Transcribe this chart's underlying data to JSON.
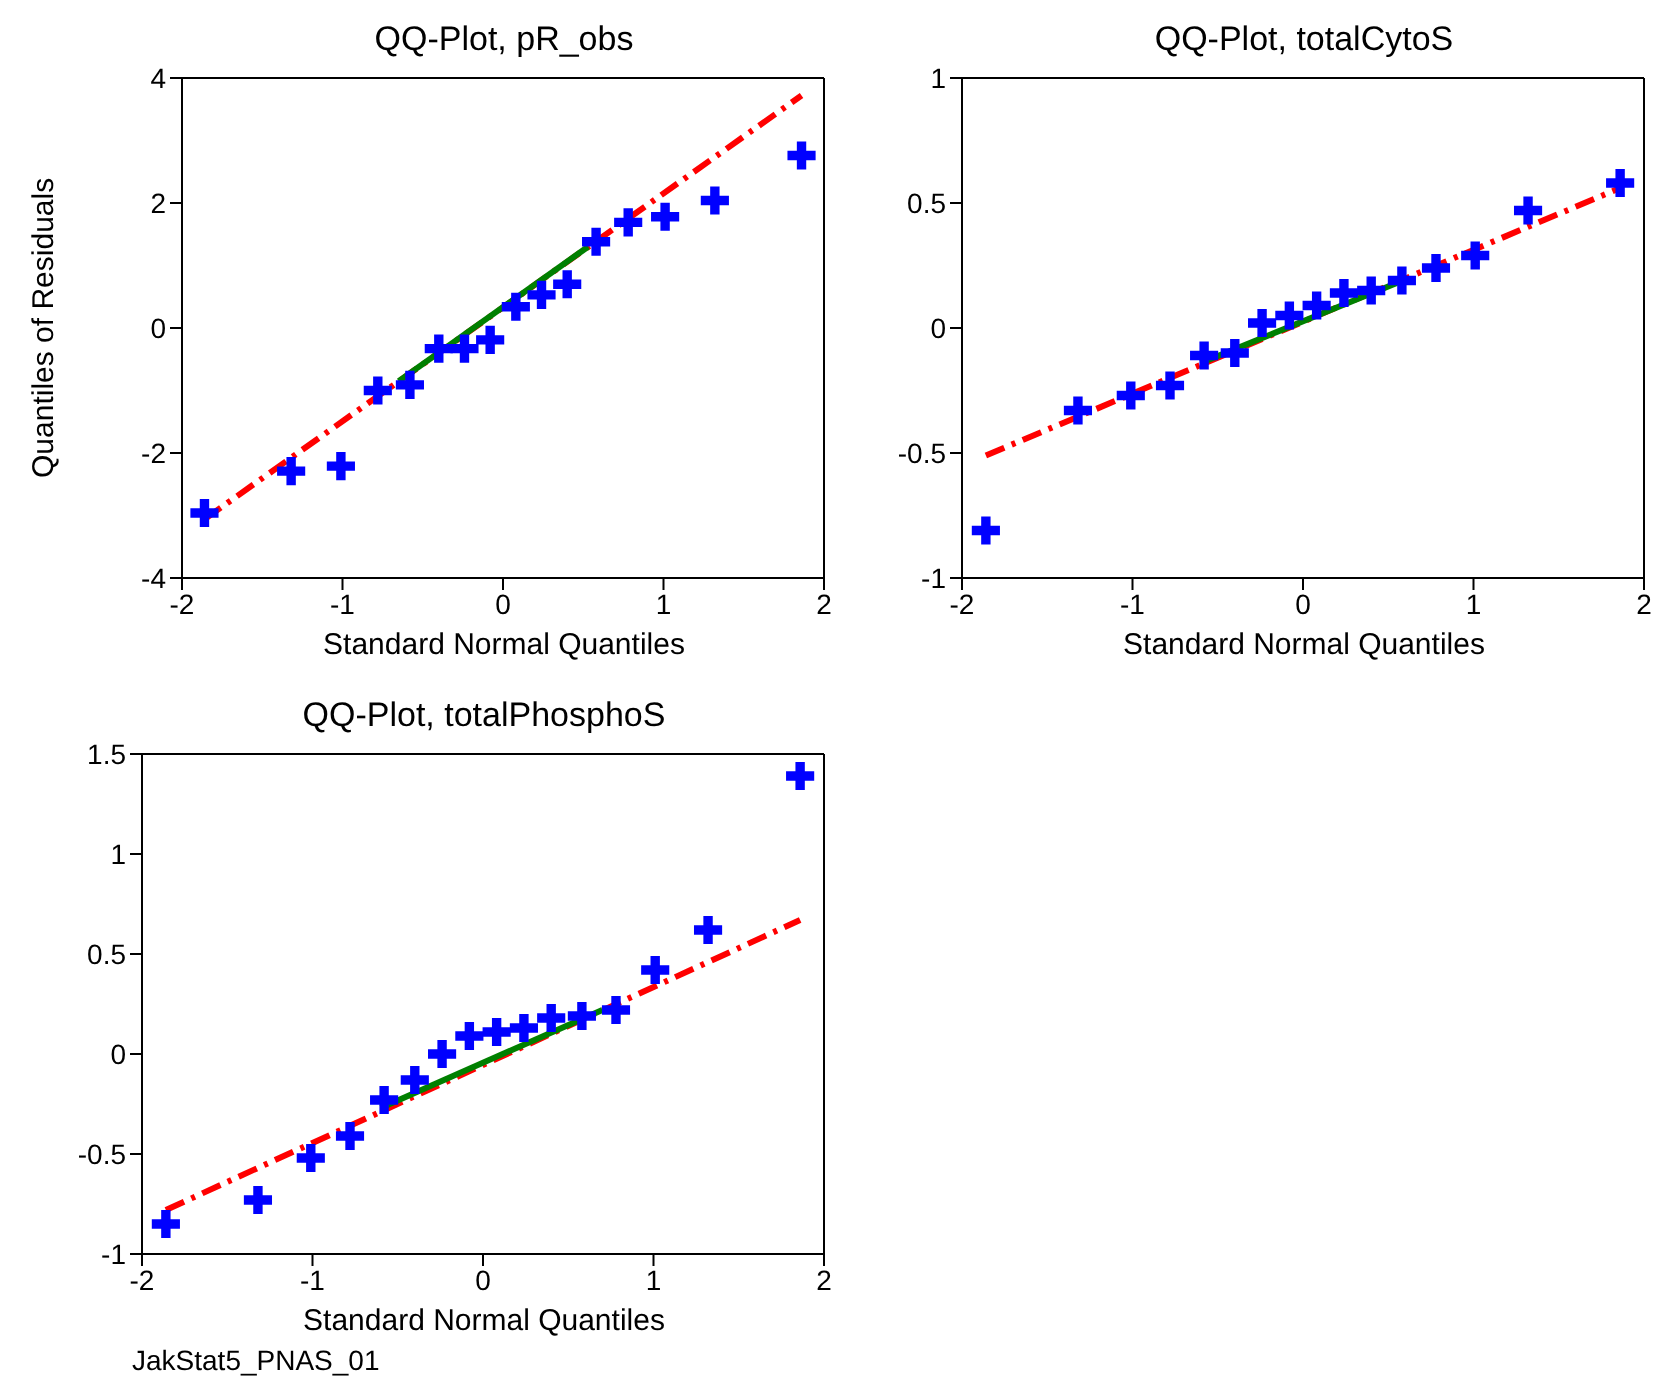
{
  "chart_data": [
    {
      "type": "scatter",
      "title": "QQ-Plot, pR_obs",
      "xlabel": "Standard Normal Quantiles",
      "ylabel": "Quantiles of Residuals",
      "xlim": [
        -2,
        2
      ],
      "xticks": [
        -2,
        -1,
        0,
        1,
        2
      ],
      "ylim": [
        -4,
        4
      ],
      "yticks": [
        -4,
        -2,
        0,
        2,
        4
      ],
      "series": [
        {
          "type": "line",
          "color": "#ff0000",
          "line_style": "dashed",
          "x": [
            -1.86,
            1.86
          ],
          "values": [
            -3.06,
            3.72
          ]
        },
        {
          "type": "line",
          "color": "#008000",
          "line_style": "solid",
          "x": [
            -0.65,
            0.53
          ],
          "values": [
            -0.85,
            1.3
          ]
        },
        {
          "type": "scatter",
          "color": "#0000ff",
          "marker": "cross",
          "x": [
            -1.86,
            -1.32,
            -1.01,
            -0.78,
            -0.58,
            -0.4,
            -0.24,
            -0.08,
            0.08,
            0.24,
            0.4,
            0.58,
            0.78,
            1.01,
            1.32,
            1.86
          ],
          "values": [
            -2.96,
            -2.29,
            -2.21,
            -1.0,
            -0.91,
            -0.33,
            -0.33,
            -0.19,
            0.34,
            0.53,
            0.7,
            1.38,
            1.69,
            1.78,
            2.04,
            2.76
          ]
        }
      ]
    },
    {
      "type": "scatter",
      "title": "QQ-Plot, totalCytoS",
      "xlabel": "Standard Normal Quantiles",
      "xlim": [
        -2,
        2
      ],
      "xticks": [
        -2,
        -1,
        0,
        1,
        2
      ],
      "ylim": [
        -1,
        1
      ],
      "yticks": [
        -1,
        -0.5,
        0,
        0.5,
        1
      ],
      "series": [
        {
          "type": "line",
          "color": "#ff0000",
          "line_style": "dashed",
          "x": [
            -1.86,
            1.86
          ],
          "values": [
            -0.51,
            0.56
          ]
        },
        {
          "type": "line",
          "color": "#008000",
          "line_style": "solid",
          "x": [
            -0.6,
            0.55
          ],
          "values": [
            -0.14,
            0.18
          ]
        },
        {
          "type": "scatter",
          "color": "#0000ff",
          "marker": "cross",
          "x": [
            -1.86,
            -1.32,
            -1.01,
            -0.78,
            -0.58,
            -0.4,
            -0.24,
            -0.08,
            0.08,
            0.24,
            0.4,
            0.58,
            0.78,
            1.01,
            1.32,
            1.86
          ],
          "values": [
            -0.81,
            -0.33,
            -0.27,
            -0.23,
            -0.11,
            -0.1,
            0.02,
            0.05,
            0.09,
            0.14,
            0.15,
            0.19,
            0.24,
            0.29,
            0.47,
            0.58
          ]
        }
      ]
    },
    {
      "type": "scatter",
      "title": "QQ-Plot, totalPhosphoS",
      "xlabel": "Standard Normal Quantiles",
      "xlim": [
        -2,
        2
      ],
      "xticks": [
        -2,
        -1,
        0,
        1,
        2
      ],
      "ylim": [
        -1,
        1.5
      ],
      "yticks": [
        -1,
        -0.5,
        0,
        0.5,
        1,
        1.5
      ],
      "annotations": [
        "JakStat5_PNAS_01"
      ],
      "series": [
        {
          "type": "line",
          "color": "#ff0000",
          "line_style": "dashed",
          "x": [
            -1.86,
            1.86
          ],
          "values": [
            -0.78,
            0.67
          ]
        },
        {
          "type": "line",
          "color": "#008000",
          "line_style": "solid",
          "x": [
            -0.6,
            0.7
          ],
          "values": [
            -0.27,
            0.22
          ]
        },
        {
          "type": "scatter",
          "color": "#0000ff",
          "marker": "cross",
          "x": [
            -1.86,
            -1.32,
            -1.01,
            -0.78,
            -0.58,
            -0.4,
            -0.24,
            -0.08,
            0.08,
            0.24,
            0.4,
            0.58,
            0.78,
            1.01,
            1.32,
            1.86
          ],
          "values": [
            -0.85,
            -0.73,
            -0.52,
            -0.41,
            -0.23,
            -0.13,
            0,
            0.09,
            0.11,
            0.13,
            0.18,
            0.19,
            0.22,
            0.42,
            0.62,
            1.39
          ]
        }
      ]
    }
  ]
}
